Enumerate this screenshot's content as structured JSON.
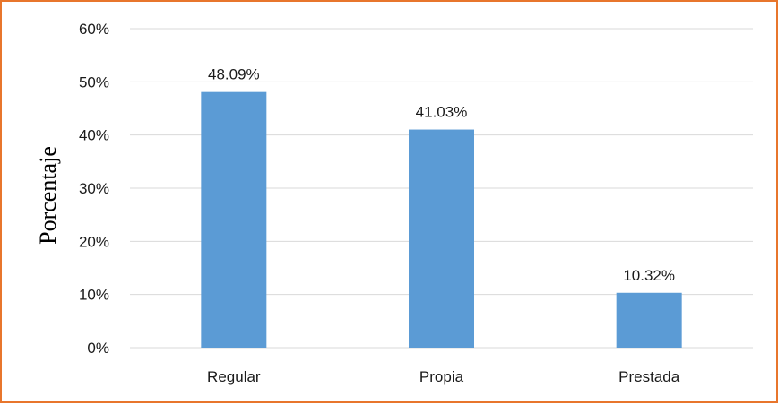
{
  "chart_data": {
    "type": "bar",
    "title": "",
    "xlabel": "",
    "ylabel": "Porcentaje",
    "categories": [
      "Regular",
      "Propia",
      "Prestada"
    ],
    "values": [
      48.09,
      41.03,
      10.32
    ],
    "data_labels": [
      "48.09%",
      "41.03%",
      "10.32%"
    ],
    "ylim": [
      0,
      60
    ],
    "yticks": [
      0,
      10,
      20,
      30,
      40,
      50,
      60
    ],
    "ytick_labels": [
      "0%",
      "10%",
      "20%",
      "30%",
      "40%",
      "50%",
      "60%"
    ],
    "grid": "horizontal",
    "legend": "none",
    "bar_color": "#5B9BD5",
    "grid_color": "#D9D9D9",
    "border_color": "#E8762C"
  }
}
